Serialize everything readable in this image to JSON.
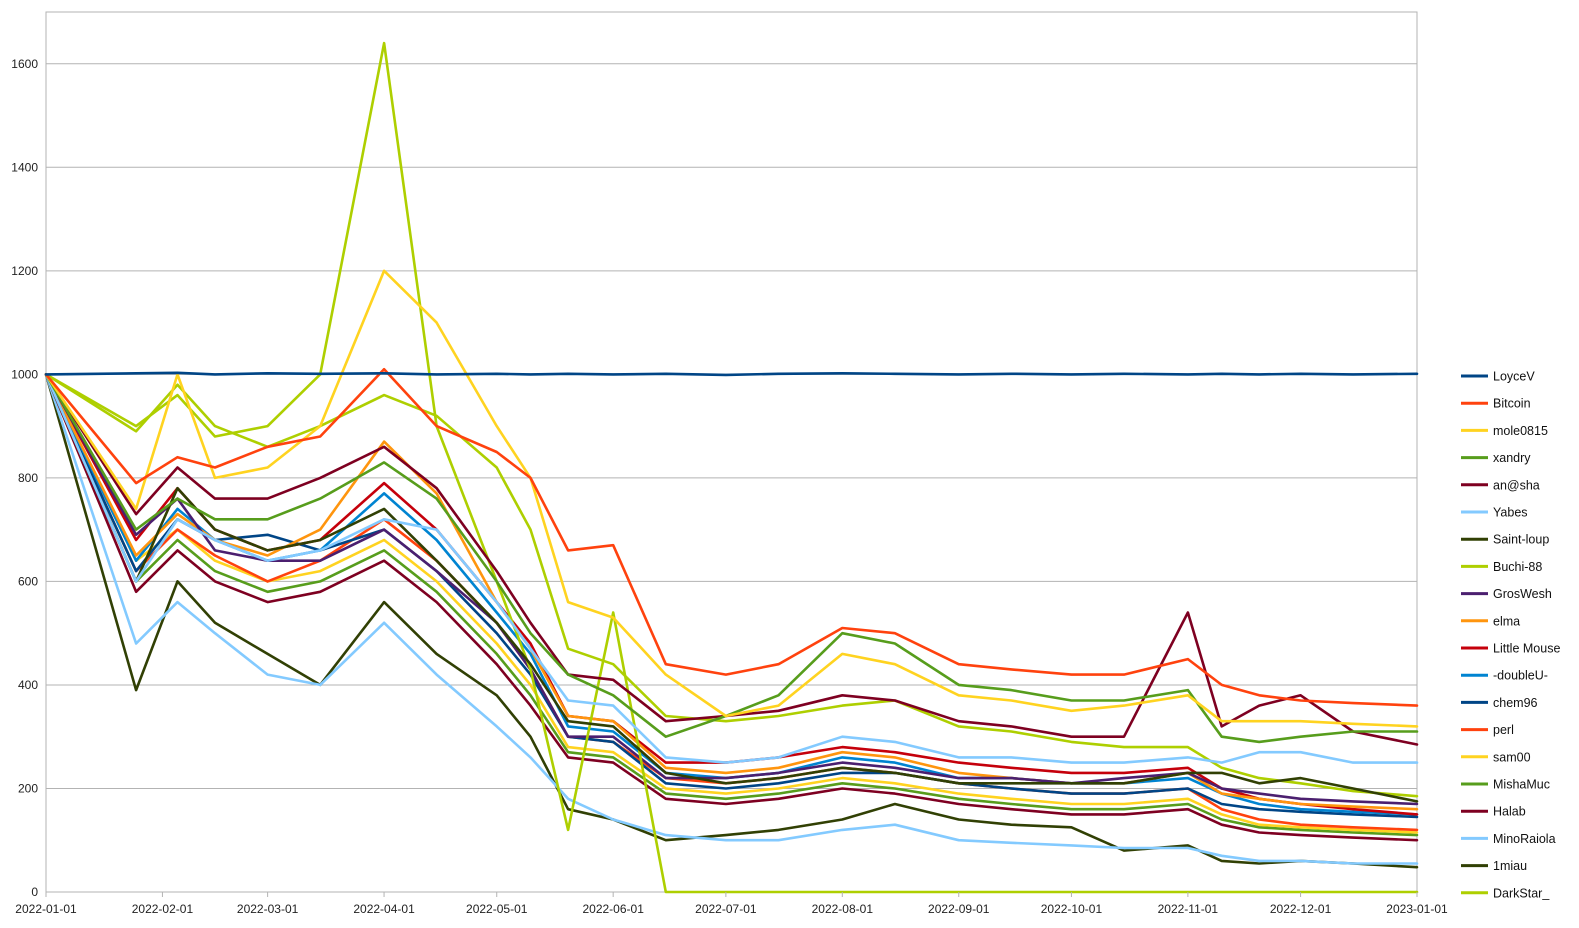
{
  "chart_data": {
    "type": "line",
    "title": "",
    "xlabel": "",
    "ylabel": "",
    "ylim": [
      0,
      1700
    ],
    "xlim": [
      "2022-01-01",
      "2023-01-01"
    ],
    "grid": true,
    "legend_position": "right",
    "y_ticks": [
      "0",
      "200",
      "400",
      "600",
      "800",
      "1000",
      "1200",
      "1400",
      "1600"
    ],
    "x_ticks": [
      "2022-01-01",
      "2022-02-01",
      "2022-03-01",
      "2022-04-01",
      "2022-05-01",
      "2022-06-01",
      "2022-07-01",
      "2022-08-01",
      "2022-09-01",
      "2022-10-01",
      "2022-11-01",
      "2022-12-01",
      "2023-01-01"
    ],
    "x": [
      "2022-01-01",
      "2022-01-25",
      "2022-02-05",
      "2022-02-15",
      "2022-03-01",
      "2022-03-15",
      "2022-04-01",
      "2022-04-15",
      "2022-05-01",
      "2022-05-10",
      "2022-05-20",
      "2022-06-01",
      "2022-06-15",
      "2022-07-01",
      "2022-07-15",
      "2022-08-01",
      "2022-08-15",
      "2022-09-01",
      "2022-09-15",
      "2022-10-01",
      "2022-10-15",
      "2022-11-01",
      "2022-11-10",
      "2022-11-20",
      "2022-12-01",
      "2022-12-15",
      "2023-01-01"
    ],
    "series": [
      {
        "name": "LoyceV",
        "color": "#004586",
        "values": [
          1000,
          1002,
          1003,
          1000,
          1002,
          1001,
          1002,
          1000,
          1001,
          1000,
          1001,
          1000,
          1001,
          999,
          1001,
          1002,
          1001,
          1000,
          1001,
          1000,
          1001,
          1000,
          1001,
          1000,
          1001,
          1000,
          1001
        ]
      },
      {
        "name": "Bitcoin",
        "color": "#ff420e",
        "values": [
          1000,
          790,
          840,
          820,
          860,
          880,
          1010,
          900,
          850,
          800,
          660,
          670,
          440,
          420,
          440,
          510,
          500,
          440,
          430,
          420,
          420,
          450,
          400,
          380,
          370,
          365,
          360
        ]
      },
      {
        "name": "mole0815",
        "color": "#ffd320",
        "values": [
          1000,
          740,
          1000,
          800,
          820,
          900,
          1200,
          1100,
          900,
          800,
          560,
          530,
          420,
          340,
          360,
          460,
          440,
          380,
          370,
          350,
          360,
          380,
          330,
          330,
          330,
          325,
          320
        ]
      },
      {
        "name": "xandry",
        "color": "#579d1c",
        "values": [
          1000,
          700,
          760,
          720,
          720,
          760,
          830,
          760,
          600,
          500,
          420,
          380,
          300,
          340,
          380,
          500,
          480,
          400,
          390,
          370,
          370,
          390,
          300,
          290,
          300,
          310,
          310
        ]
      },
      {
        "name": "an@sha",
        "color": "#7e0021",
        "values": [
          1000,
          730,
          820,
          760,
          760,
          800,
          860,
          780,
          620,
          520,
          420,
          410,
          330,
          340,
          350,
          380,
          370,
          330,
          320,
          300,
          300,
          540,
          320,
          360,
          380,
          310,
          285
        ]
      },
      {
        "name": "Yabes",
        "color": "#83caff",
        "values": [
          1000,
          600,
          720,
          680,
          640,
          660,
          720,
          700,
          560,
          470,
          370,
          360,
          260,
          250,
          260,
          300,
          290,
          260,
          260,
          250,
          250,
          260,
          250,
          270,
          270,
          250,
          250
        ]
      },
      {
        "name": "Saint-loup",
        "color": "#314004",
        "values": [
          1000,
          600,
          780,
          700,
          660,
          680,
          740,
          640,
          520,
          440,
          330,
          320,
          230,
          210,
          220,
          240,
          230,
          210,
          210,
          210,
          210,
          230,
          230,
          210,
          220,
          200,
          175
        ]
      },
      {
        "name": "Buchi-88",
        "color": "#aecf00",
        "values": [
          1000,
          900,
          960,
          880,
          900,
          1000,
          1640,
          900,
          600,
          430,
          120,
          540,
          0,
          0,
          0,
          0,
          0,
          0,
          0,
          0,
          0,
          0,
          0,
          0,
          0,
          0,
          0
        ]
      },
      {
        "name": "GrosWesh",
        "color": "#4b1f6f",
        "values": [
          1000,
          690,
          760,
          660,
          640,
          640,
          700,
          620,
          520,
          430,
          300,
          300,
          220,
          220,
          230,
          250,
          240,
          220,
          220,
          210,
          220,
          230,
          200,
          190,
          180,
          175,
          170
        ]
      },
      {
        "name": "elma",
        "color": "#ff950e",
        "values": [
          1000,
          650,
          730,
          680,
          650,
          700,
          870,
          770,
          560,
          470,
          340,
          330,
          240,
          230,
          240,
          270,
          260,
          230,
          220,
          210,
          210,
          230,
          190,
          180,
          170,
          165,
          160
        ]
      },
      {
        "name": "Little Mouse",
        "color": "#c5000b",
        "values": [
          1000,
          680,
          780,
          700,
          660,
          680,
          790,
          700,
          560,
          480,
          340,
          330,
          250,
          250,
          260,
          280,
          270,
          250,
          240,
          230,
          230,
          240,
          200,
          180,
          170,
          160,
          150
        ]
      },
      {
        "name": "-doubleU-",
        "color": "#0084d1",
        "values": [
          1000,
          640,
          740,
          680,
          640,
          660,
          770,
          680,
          540,
          460,
          320,
          310,
          230,
          220,
          230,
          260,
          250,
          220,
          220,
          210,
          210,
          220,
          190,
          170,
          160,
          155,
          150
        ]
      },
      {
        "name": "chem96",
        "color": "#004586",
        "values": [
          1000,
          620,
          720,
          680,
          690,
          660,
          700,
          620,
          500,
          420,
          300,
          290,
          210,
          200,
          210,
          230,
          230,
          210,
          200,
          190,
          190,
          200,
          170,
          160,
          155,
          150,
          145
        ]
      },
      {
        "name": "perl",
        "color": "#ff420e",
        "values": [
          1000,
          620,
          700,
          650,
          600,
          640,
          720,
          640,
          520,
          430,
          300,
          290,
          220,
          210,
          220,
          240,
          230,
          210,
          200,
          190,
          190,
          200,
          160,
          140,
          130,
          125,
          120
        ]
      },
      {
        "name": "sam00",
        "color": "#ffd320",
        "values": [
          1000,
          640,
          700,
          640,
          600,
          620,
          680,
          600,
          480,
          400,
          280,
          270,
          200,
          190,
          200,
          220,
          210,
          190,
          180,
          170,
          170,
          180,
          150,
          130,
          125,
          120,
          115
        ]
      },
      {
        "name": "MishaMuc",
        "color": "#579d1c",
        "values": [
          1000,
          600,
          680,
          620,
          580,
          600,
          660,
          580,
          460,
          380,
          270,
          260,
          190,
          180,
          190,
          210,
          200,
          180,
          170,
          160,
          160,
          170,
          140,
          125,
          120,
          115,
          110
        ]
      },
      {
        "name": "Halab",
        "color": "#7e0021",
        "values": [
          1000,
          580,
          660,
          600,
          560,
          580,
          640,
          560,
          440,
          360,
          260,
          250,
          180,
          170,
          180,
          200,
          190,
          170,
          160,
          150,
          150,
          160,
          130,
          115,
          110,
          105,
          100
        ]
      },
      {
        "name": "MinoRaiola",
        "color": "#83caff",
        "values": [
          1000,
          480,
          560,
          500,
          420,
          400,
          520,
          420,
          320,
          260,
          180,
          140,
          110,
          100,
          100,
          120,
          130,
          100,
          95,
          90,
          85,
          85,
          70,
          60,
          60,
          55,
          55
        ]
      },
      {
        "name": "1miau",
        "color": "#314004",
        "values": [
          1000,
          390,
          600,
          520,
          460,
          400,
          560,
          460,
          380,
          300,
          160,
          140,
          100,
          110,
          120,
          140,
          170,
          140,
          130,
          125,
          80,
          90,
          60,
          55,
          60,
          55,
          48
        ]
      },
      {
        "name": "DarkStar_",
        "color": "#aecf00",
        "values": [
          1000,
          890,
          980,
          900,
          860,
          900,
          960,
          920,
          820,
          700,
          470,
          440,
          340,
          330,
          340,
          360,
          370,
          320,
          310,
          290,
          280,
          280,
          240,
          220,
          210,
          195,
          185
        ]
      }
    ]
  }
}
